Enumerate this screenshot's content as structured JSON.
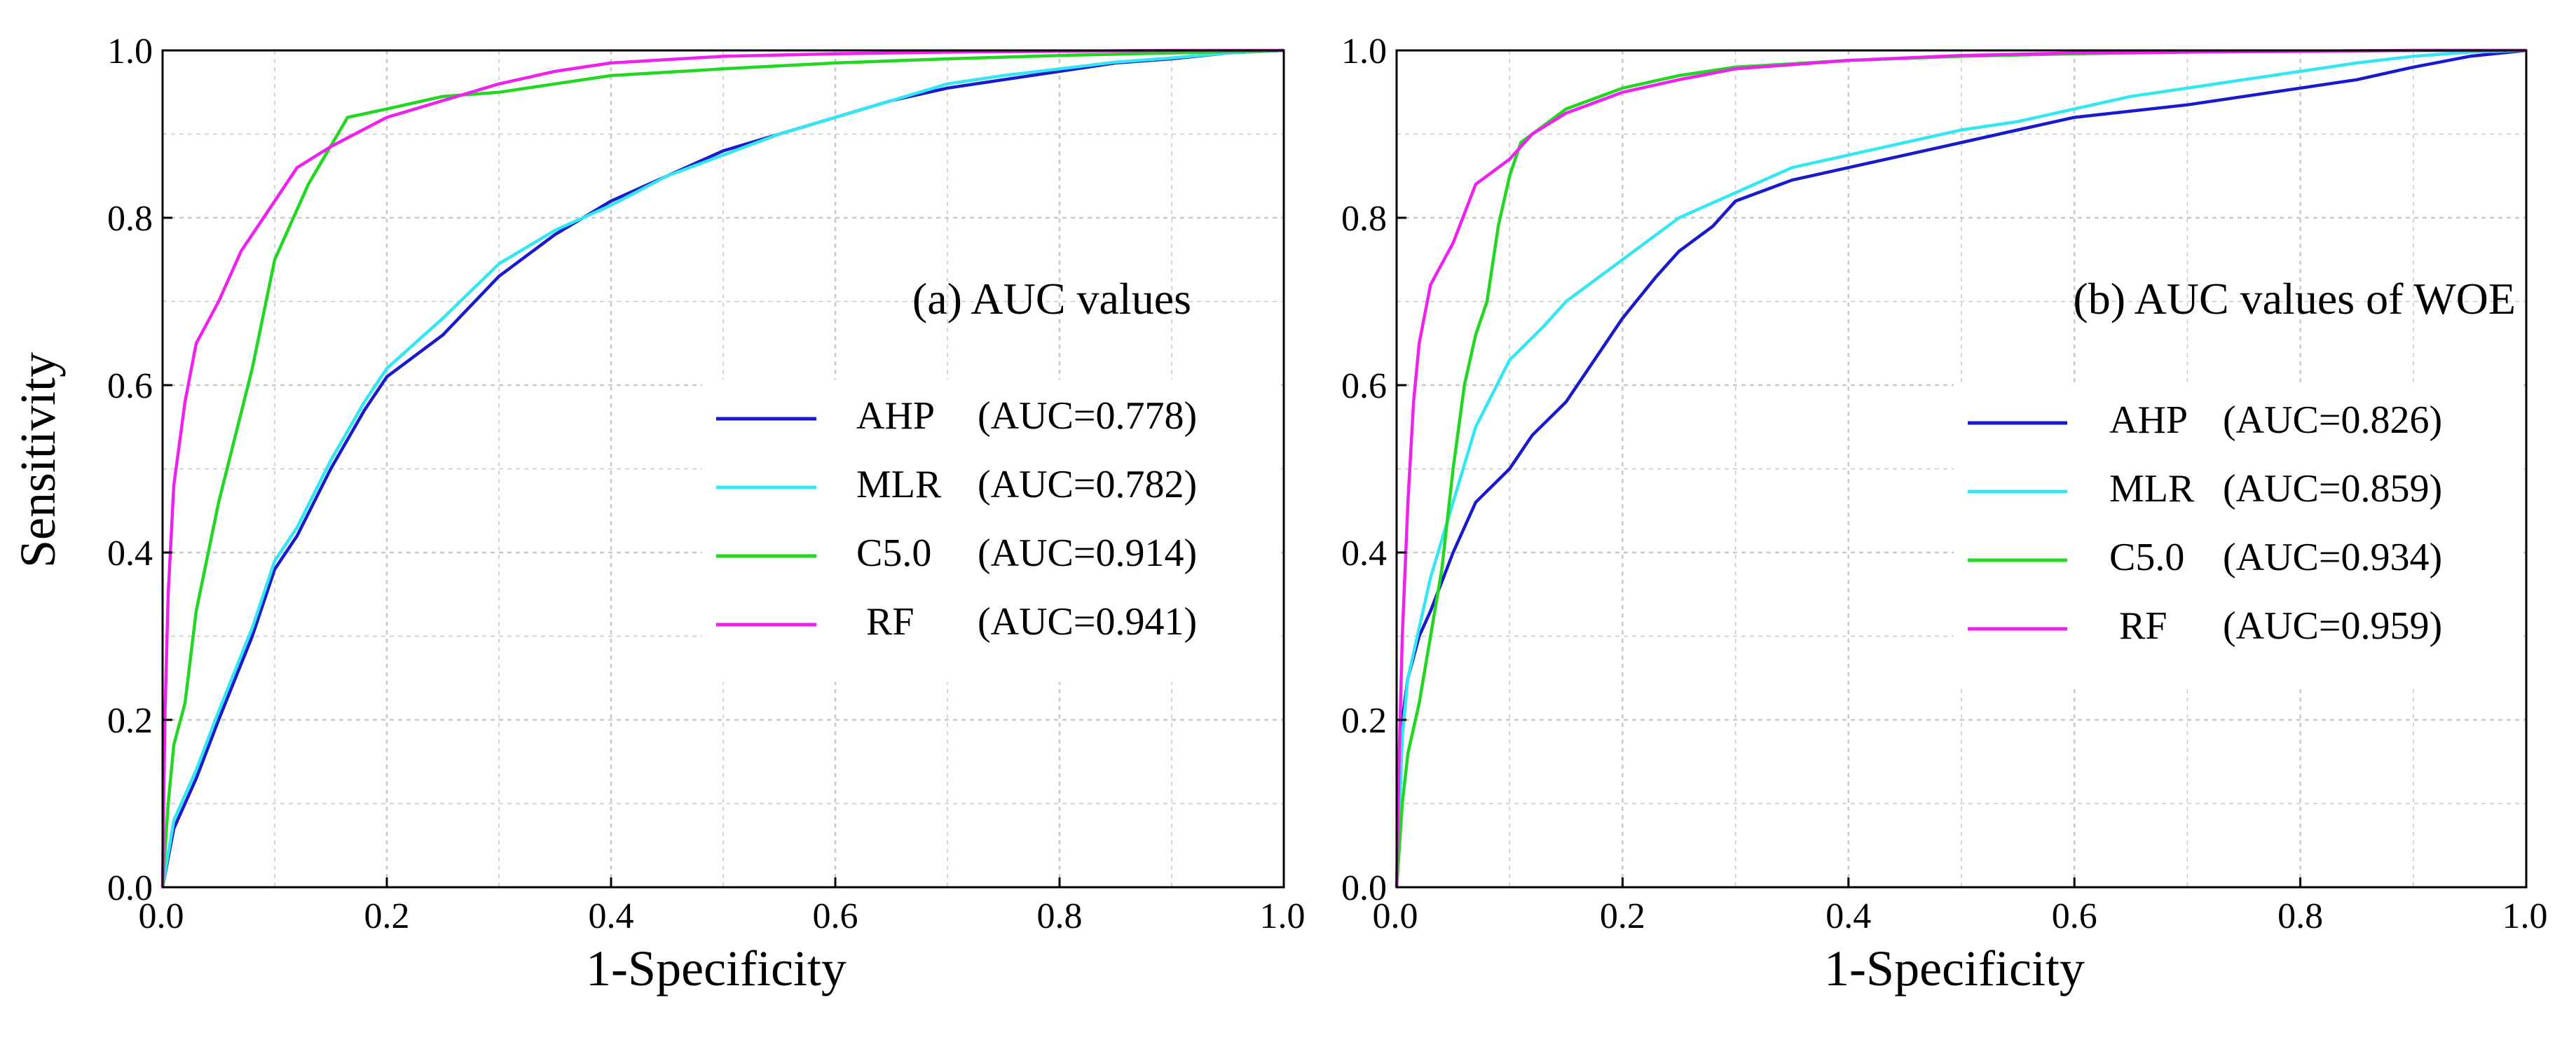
{
  "colors": {
    "AHP": "#1a1acc",
    "MLR": "#33e6f2",
    "C5.0": "#22d622",
    "RF": "#ee22ee",
    "grid": "#c8c8c8",
    "frame": "#000000"
  },
  "chart_data": [
    {
      "type": "line",
      "title": "(a) AUC values",
      "xlabel": "1-Specificity",
      "ylabel": "Sensitivity",
      "xlim": [
        0,
        1
      ],
      "ylim": [
        0,
        1
      ],
      "xticks": [
        "0.0",
        "0.2",
        "0.4",
        "0.6",
        "0.8",
        "1.0"
      ],
      "yticks": [
        "0.0",
        "0.2",
        "0.4",
        "0.6",
        "0.8",
        "1.0"
      ],
      "grid": true,
      "legend_position": "right",
      "series": [
        {
          "name": "AHP",
          "legend": "AHP",
          "auc_text": "(AUC=0.778)",
          "x": [
            0,
            0.01,
            0.03,
            0.05,
            0.08,
            0.1,
            0.12,
            0.15,
            0.18,
            0.2,
            0.25,
            0.3,
            0.35,
            0.4,
            0.45,
            0.5,
            0.55,
            0.6,
            0.65,
            0.7,
            0.75,
            0.8,
            0.85,
            0.9,
            0.95,
            1.0
          ],
          "y": [
            0,
            0.07,
            0.13,
            0.2,
            0.3,
            0.38,
            0.42,
            0.5,
            0.57,
            0.61,
            0.66,
            0.73,
            0.78,
            0.82,
            0.85,
            0.88,
            0.9,
            0.92,
            0.94,
            0.955,
            0.965,
            0.975,
            0.985,
            0.99,
            0.997,
            1.0
          ]
        },
        {
          "name": "MLR",
          "legend": "MLR",
          "auc_text": "(AUC=0.782)",
          "x": [
            0,
            0.01,
            0.03,
            0.05,
            0.08,
            0.1,
            0.12,
            0.15,
            0.18,
            0.2,
            0.25,
            0.3,
            0.35,
            0.4,
            0.45,
            0.5,
            0.55,
            0.6,
            0.65,
            0.7,
            0.75,
            0.8,
            0.85,
            0.9,
            0.95,
            1.0
          ],
          "y": [
            0,
            0.08,
            0.14,
            0.21,
            0.31,
            0.39,
            0.43,
            0.51,
            0.58,
            0.62,
            0.68,
            0.745,
            0.785,
            0.815,
            0.85,
            0.875,
            0.9,
            0.92,
            0.94,
            0.96,
            0.97,
            0.978,
            0.986,
            0.991,
            0.997,
            1.0
          ]
        },
        {
          "name": "C5.0",
          "legend": "C5.0",
          "auc_text": "(AUC=0.914)",
          "x": [
            0,
            0.005,
            0.01,
            0.02,
            0.03,
            0.05,
            0.08,
            0.1,
            0.13,
            0.165,
            0.2,
            0.25,
            0.3,
            0.35,
            0.4,
            0.5,
            0.6,
            0.7,
            0.8,
            0.9,
            1.0
          ],
          "y": [
            0,
            0.1,
            0.17,
            0.22,
            0.33,
            0.46,
            0.62,
            0.75,
            0.84,
            0.92,
            0.93,
            0.945,
            0.95,
            0.96,
            0.97,
            0.978,
            0.985,
            0.99,
            0.994,
            0.997,
            1.0
          ]
        },
        {
          "name": "RF",
          "legend": "RF",
          "auc_text": "(AUC=0.941)",
          "x": [
            0,
            0.002,
            0.005,
            0.01,
            0.02,
            0.03,
            0.05,
            0.07,
            0.1,
            0.12,
            0.15,
            0.2,
            0.25,
            0.3,
            0.35,
            0.4,
            0.5,
            0.6,
            0.7,
            0.8,
            0.9,
            1.0
          ],
          "y": [
            0,
            0.2,
            0.35,
            0.48,
            0.58,
            0.65,
            0.7,
            0.76,
            0.82,
            0.86,
            0.885,
            0.92,
            0.94,
            0.96,
            0.975,
            0.985,
            0.993,
            0.996,
            0.998,
            0.999,
            1.0,
            1.0
          ]
        }
      ]
    },
    {
      "type": "line",
      "title": "(b) AUC values of WOE",
      "xlabel": "1-Specificity",
      "ylabel": "",
      "xlim": [
        0,
        1
      ],
      "ylim": [
        0,
        1
      ],
      "xticks": [
        "0.0",
        "0.2",
        "0.4",
        "0.6",
        "0.8",
        "1.0"
      ],
      "yticks": [
        "0.0",
        "0.2",
        "0.4",
        "0.6",
        "0.8",
        "1.0"
      ],
      "grid": true,
      "legend_position": "right",
      "series": [
        {
          "name": "AHP",
          "legend": "AHP",
          "auc_text": "(AUC=0.826)",
          "x": [
            0,
            0.005,
            0.01,
            0.02,
            0.03,
            0.05,
            0.07,
            0.1,
            0.12,
            0.15,
            0.18,
            0.2,
            0.23,
            0.25,
            0.28,
            0.3,
            0.35,
            0.4,
            0.45,
            0.5,
            0.55,
            0.6,
            0.7,
            0.8,
            0.85,
            0.9,
            0.95,
            1.0
          ],
          "y": [
            0,
            0.2,
            0.25,
            0.3,
            0.33,
            0.4,
            0.46,
            0.5,
            0.54,
            0.58,
            0.64,
            0.68,
            0.73,
            0.76,
            0.79,
            0.82,
            0.845,
            0.86,
            0.875,
            0.89,
            0.905,
            0.92,
            0.935,
            0.955,
            0.965,
            0.98,
            0.993,
            1.0
          ]
        },
        {
          "name": "MLR",
          "legend": "MLR",
          "auc_text": "(AUC=0.859)",
          "x": [
            0,
            0.005,
            0.01,
            0.02,
            0.03,
            0.05,
            0.07,
            0.1,
            0.13,
            0.15,
            0.2,
            0.25,
            0.3,
            0.35,
            0.4,
            0.45,
            0.5,
            0.55,
            0.6,
            0.65,
            0.7,
            0.75,
            0.8,
            0.85,
            0.9,
            0.95,
            1.0
          ],
          "y": [
            0,
            0.18,
            0.25,
            0.31,
            0.37,
            0.46,
            0.55,
            0.63,
            0.67,
            0.7,
            0.75,
            0.8,
            0.83,
            0.86,
            0.875,
            0.89,
            0.905,
            0.915,
            0.93,
            0.945,
            0.955,
            0.965,
            0.975,
            0.985,
            0.993,
            0.998,
            1.0
          ]
        },
        {
          "name": "C5.0",
          "legend": "C5.0",
          "auc_text": "(AUC=0.934)",
          "x": [
            0,
            0.005,
            0.01,
            0.02,
            0.03,
            0.04,
            0.05,
            0.06,
            0.07,
            0.08,
            0.09,
            0.1,
            0.11,
            0.13,
            0.15,
            0.2,
            0.25,
            0.3,
            0.4,
            0.5,
            0.6,
            0.7,
            0.8,
            0.9,
            1.0
          ],
          "y": [
            0,
            0.1,
            0.16,
            0.22,
            0.3,
            0.38,
            0.5,
            0.6,
            0.66,
            0.7,
            0.79,
            0.85,
            0.89,
            0.91,
            0.93,
            0.955,
            0.97,
            0.98,
            0.988,
            0.993,
            0.996,
            0.998,
            0.999,
            1.0,
            1.0
          ]
        },
        {
          "name": "RF",
          "legend": "RF",
          "auc_text": "(AUC=0.959)",
          "x": [
            0,
            0.002,
            0.005,
            0.01,
            0.015,
            0.02,
            0.03,
            0.05,
            0.07,
            0.1,
            0.12,
            0.15,
            0.2,
            0.25,
            0.3,
            0.4,
            0.5,
            0.6,
            0.7,
            0.8,
            0.9,
            1.0
          ],
          "y": [
            0,
            0.14,
            0.3,
            0.46,
            0.58,
            0.65,
            0.72,
            0.77,
            0.84,
            0.87,
            0.9,
            0.925,
            0.95,
            0.965,
            0.978,
            0.988,
            0.994,
            0.997,
            0.998,
            0.999,
            1.0,
            1.0
          ]
        }
      ]
    }
  ]
}
